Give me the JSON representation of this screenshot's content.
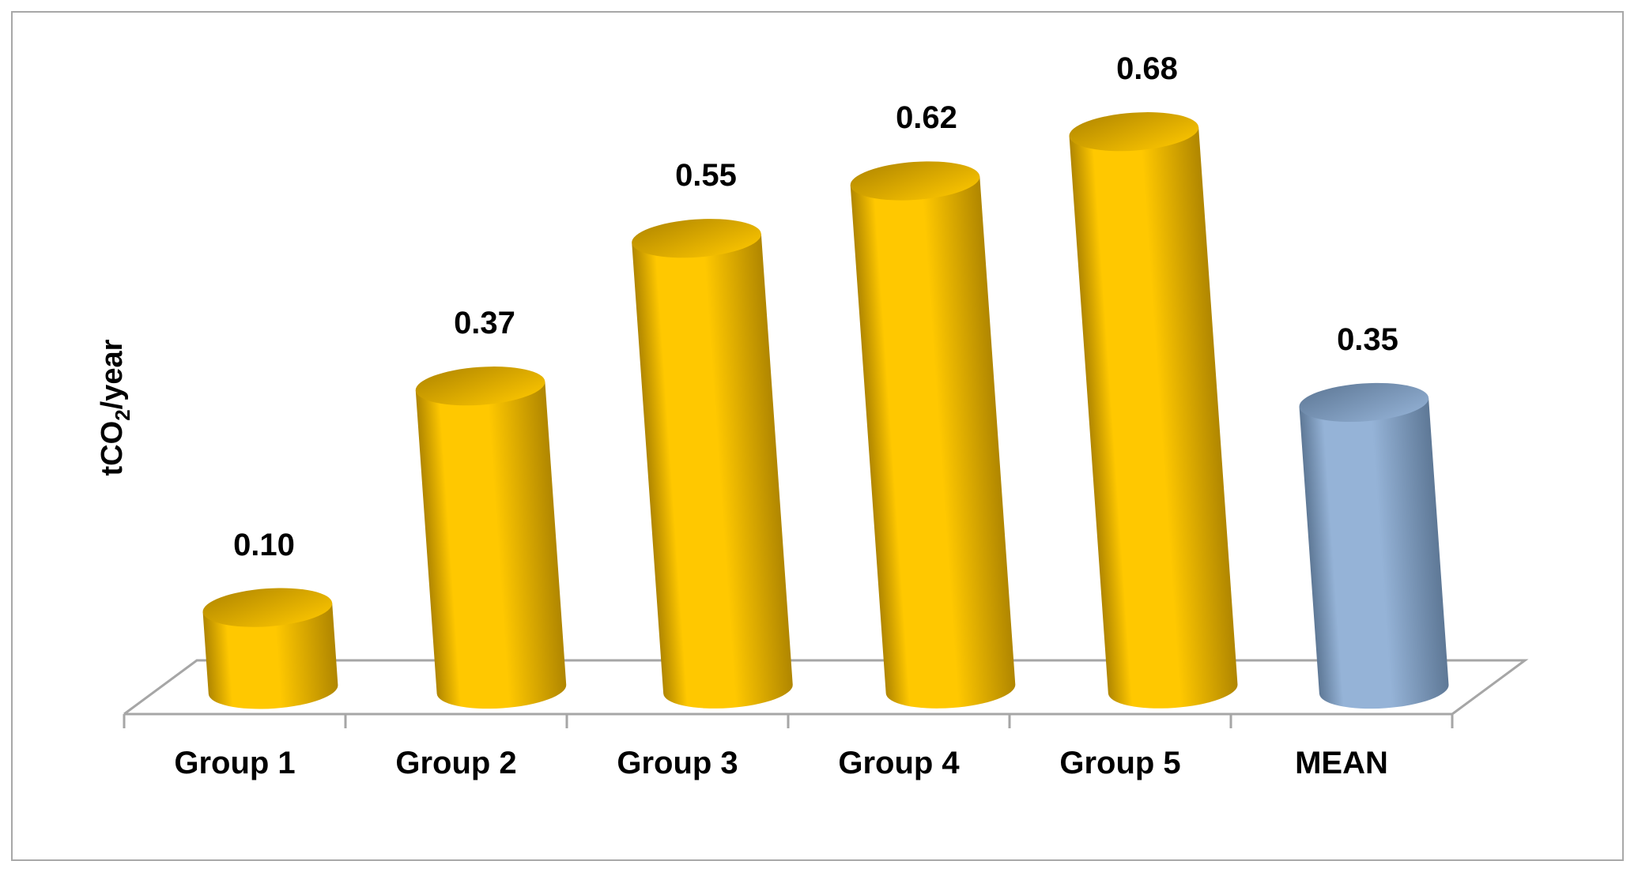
{
  "chart_data": {
    "type": "bar",
    "style": "3d-cylinder",
    "categories": [
      "Group 1",
      "Group 2",
      "Group 3",
      "Group 4",
      "Group 5",
      "MEAN"
    ],
    "values": [
      0.1,
      0.37,
      0.55,
      0.62,
      0.68,
      0.35
    ],
    "data_labels": [
      "0.10",
      "0.37",
      "0.55",
      "0.62",
      "0.68",
      "0.35"
    ],
    "title": "",
    "xlabel": "",
    "ylabel": "tCO",
    "ylabel_subscript": "2",
    "ylabel_suffix": "/year",
    "ylim": [
      0,
      0.8
    ],
    "grid": false,
    "legend": "none",
    "colors": {
      "group_bar": "#FFC800",
      "group_bar_dark": "#B08600",
      "mean_bar": "#95B3D7",
      "mean_bar_dark": "#5E7896",
      "floor_line": "#a6a6a6"
    },
    "bar_color_keys": [
      "group",
      "group",
      "group",
      "group",
      "group",
      "mean"
    ]
  }
}
